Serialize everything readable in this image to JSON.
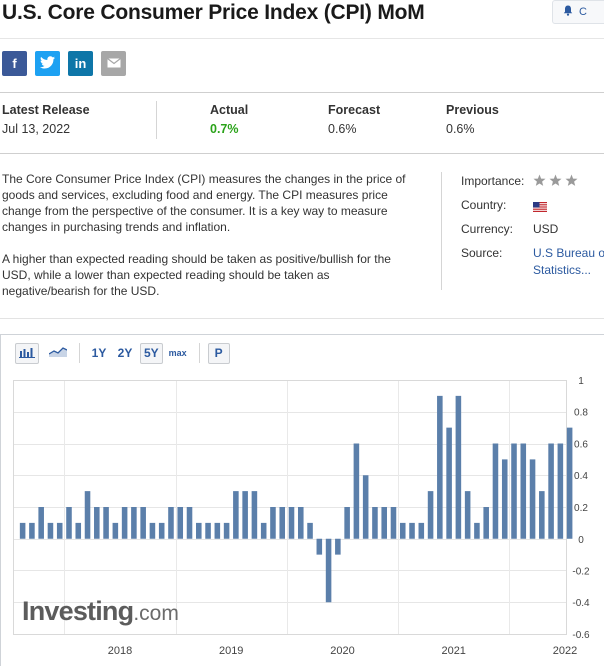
{
  "header": {
    "title": "U.S. Core Consumer Price Index (CPI) MoM",
    "alert_label": "C"
  },
  "share": {
    "facebook": "f",
    "twitter": "t",
    "linkedin": "in"
  },
  "release": {
    "latest_label": "Latest Release",
    "latest_value": "Jul 13, 2022",
    "actual_label": "Actual",
    "actual_value": "0.7%",
    "forecast_label": "Forecast",
    "forecast_value": "0.6%",
    "previous_label": "Previous",
    "previous_value": "0.6%",
    "actual_color": "#2ba31a"
  },
  "description": {
    "p1": "The Core Consumer Price Index (CPI) measures the changes in the price of goods and services, excluding food and energy. The CPI measures price change from the perspective of the consumer. It is a key way to measure changes in purchasing trends and inflation.",
    "p2": "A higher than expected reading should be taken as positive/bullish for the USD, while a lower than expected reading should be taken as negative/bearish for the USD."
  },
  "info": {
    "importance_label": "Importance:",
    "importance_stars": 3,
    "country_label": "Country:",
    "country_icon": "us-flag-icon",
    "currency_label": "Currency:",
    "currency_value": "USD",
    "source_label": "Source:",
    "source_line1": "U.S Bureau o",
    "source_line2": "Statistics..."
  },
  "toolbar": {
    "range_1y": "1Y",
    "range_2y": "2Y",
    "range_5y": "5Y",
    "range_max": "max",
    "period_btn": "P"
  },
  "watermark": {
    "brand": "Investing",
    "suffix": ".com"
  },
  "chart_data": {
    "type": "bar",
    "bar_color": "#5b7faa",
    "ylim": [
      -0.6,
      1
    ],
    "y_ticks": [
      "1",
      "0.8",
      "0.6",
      "0.4",
      "0.2",
      "0",
      "-0.2",
      "-0.4",
      "-0.6"
    ],
    "year_labels": [
      "2018",
      "2019",
      "2020",
      "2021",
      "2022"
    ],
    "x_start": "2017-08",
    "x_end": "2022-06",
    "values": [
      0.1,
      0.1,
      0.2,
      0.1,
      0.1,
      0.2,
      0.1,
      0.3,
      0.2,
      0.2,
      0.1,
      0.2,
      0.2,
      0.2,
      0.1,
      0.1,
      0.2,
      0.2,
      0.2,
      0.1,
      0.1,
      0.1,
      0.1,
      0.3,
      0.3,
      0.3,
      0.1,
      0.2,
      0.2,
      0.2,
      0.2,
      0.1,
      -0.1,
      -0.4,
      -0.1,
      0.2,
      0.6,
      0.4,
      0.2,
      0.2,
      0.2,
      0.1,
      0.1,
      0.1,
      0.3,
      0.9,
      0.7,
      0.9,
      0.3,
      0.1,
      0.2,
      0.6,
      0.5,
      0.6,
      0.6,
      0.5,
      0.3,
      0.6,
      0.6,
      0.7
    ]
  }
}
